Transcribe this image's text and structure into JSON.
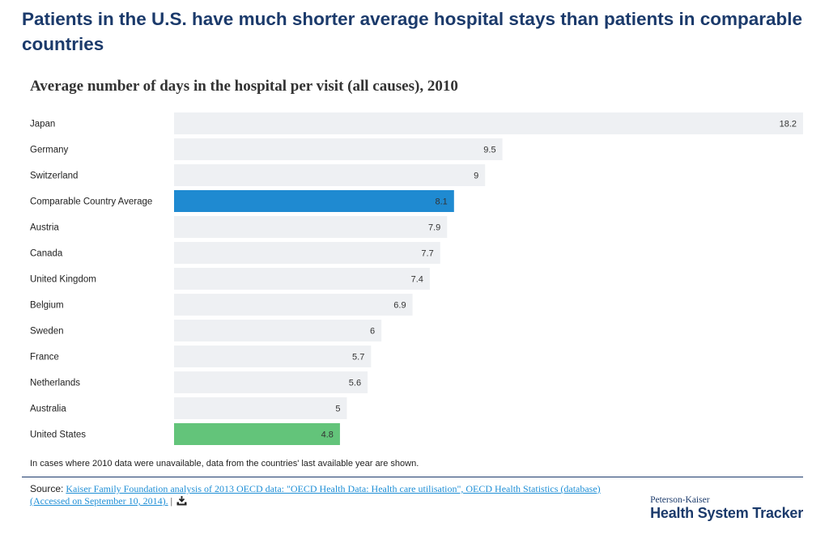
{
  "header": {
    "headline": "Patients in the U.S. have much shorter average hospital stays than patients in comparable countries"
  },
  "chart_data": {
    "type": "bar",
    "orientation": "horizontal",
    "title": "Average number of days in the hospital per visit (all causes), 2010",
    "categories": [
      "Japan",
      "Germany",
      "Switzerland",
      "Comparable Country Average",
      "Austria",
      "Canada",
      "United Kingdom",
      "Belgium",
      "Sweden",
      "France",
      "Netherlands",
      "Australia",
      "United States"
    ],
    "values": [
      18.2,
      9.5,
      9,
      8.1,
      7.9,
      7.7,
      7.4,
      6.9,
      6,
      5.7,
      5.6,
      5,
      4.8
    ],
    "value_labels": [
      "18.2",
      "9.5",
      "9",
      "8.1",
      "7.9",
      "7.7",
      "7.4",
      "6.9",
      "6",
      "5.7",
      "5.6",
      "5",
      "4.8"
    ],
    "xlim": [
      0,
      18.2
    ],
    "grid": false,
    "legend": "none",
    "colors": {
      "default": "#eef0f3",
      "highlight_average": "#1f8ad1",
      "highlight_us": "#63c47a",
      "highlighted": {
        "Comparable Country Average": "#1f8ad1",
        "United States": "#63c47a"
      }
    }
  },
  "footer": {
    "note": "In cases where 2010 data were unavailable, data from the countries' last available year are shown.",
    "source_label": "Source:",
    "source_link": "Kaiser Family Foundation analysis of 2013 OECD data: \"OECD Health Data: Health care utilisation\", OECD Health Statistics (database) (Accessed on September 10, 2014).",
    "separator": "|",
    "download_icon": "download-icon"
  },
  "branding": {
    "line1": "Peterson-Kaiser",
    "line2": "Health System Tracker"
  }
}
